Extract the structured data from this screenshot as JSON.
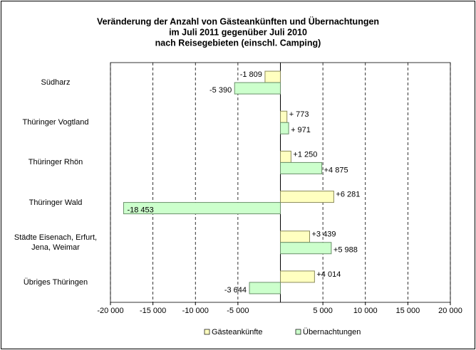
{
  "chart_data": {
    "type": "hbar",
    "title": [
      "Veränderung der Anzahl von Gästeankünften und Übernachtungen",
      "im Juli 2011 gegenüber Juli 2010",
      "nach Reisegebieten (einschl. Camping)"
    ],
    "categories": [
      "Südharz",
      "Thüringer Vogtland",
      "Thüringer Rhön",
      "Thüringer Wald",
      "Städte Eisenach, Erfurt, Jena, Weimar",
      "Übriges Thüringen"
    ],
    "series": [
      {
        "name": "Gästeankünfte",
        "color": "#ffffc0",
        "values": [
          -1809,
          773,
          1250,
          6281,
          3439,
          4014
        ],
        "value_labels": [
          "-1 809",
          "+ 773",
          "+1 250",
          "+6 281",
          "+3 439",
          "+4 014"
        ]
      },
      {
        "name": "Übernachtungen",
        "color": "#ccffcc",
        "values": [
          -5390,
          971,
          4875,
          -18453,
          5988,
          -3644
        ],
        "value_labels": [
          "-5 390",
          "+ 971",
          "+4 875",
          "-18 453",
          "+5 988",
          "-3 644"
        ]
      }
    ],
    "xlim": [
      -20000,
      20000
    ],
    "xticks": [
      {
        "value": -20000,
        "label": "-20 000"
      },
      {
        "value": -15000,
        "label": "-15 000"
      },
      {
        "value": -10000,
        "label": "-10 000"
      },
      {
        "value": -5000,
        "label": "-5 000"
      },
      {
        "value": 5000,
        "label": "5 000"
      },
      {
        "value": 10000,
        "label": "10 000"
      },
      {
        "value": 15000,
        "label": "15 000"
      },
      {
        "value": 20000,
        "label": "20 000"
      }
    ],
    "grid": true,
    "legend": "bottom"
  }
}
